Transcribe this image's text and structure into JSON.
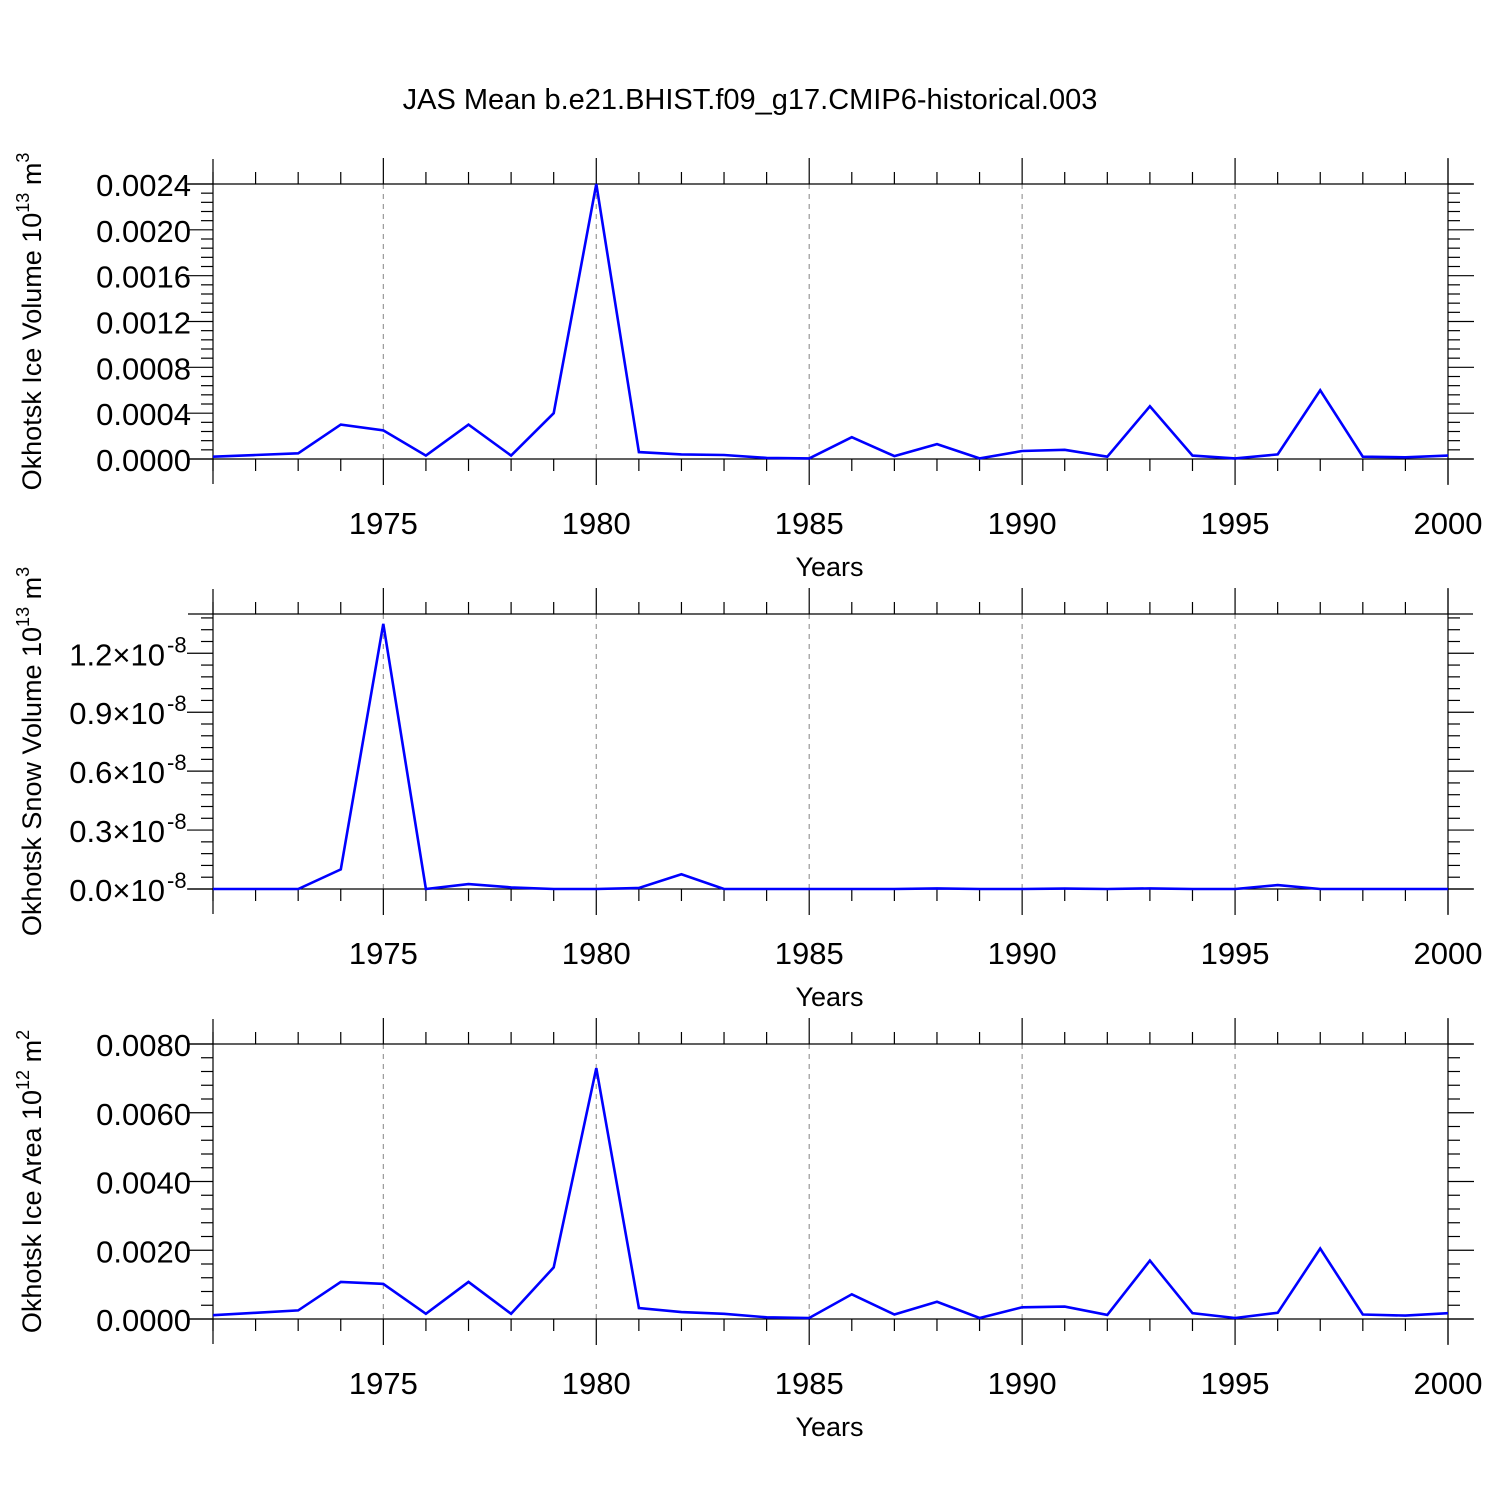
{
  "figure": {
    "title": "JAS Mean b.e21.BHIST.f09_g17.CMIP6-historical.003",
    "line_color": "#0000ff"
  },
  "chart_data": [
    {
      "type": "line",
      "title": "",
      "ylabel": "Okhotsk Ice Volume 10",
      "ylabel_exp": "13",
      "ylabel_unit": " m",
      "ylabel_unit_exp": "3",
      "xlabel": "Years",
      "xlim": [
        1971,
        2000
      ],
      "ylim": [
        0,
        0.0024
      ],
      "xticks": [
        1975,
        1980,
        1985,
        1990,
        1995,
        2000
      ],
      "xtick_labels": [
        "1975",
        "1980",
        "1985",
        "1990",
        "1995",
        "2000"
      ],
      "yticks": [
        0,
        0.0004,
        0.0008,
        0.0012,
        0.0016,
        0.002,
        0.0024
      ],
      "ytick_labels": [
        "0.0000",
        "0.0004",
        "0.0008",
        "0.0012",
        "0.0016",
        "0.0020",
        "0.0024"
      ],
      "grid": "vertical dashed at major x ticks",
      "x": [
        1971,
        1972,
        1973,
        1974,
        1975,
        1976,
        1977,
        1978,
        1979,
        1980,
        1981,
        1982,
        1983,
        1984,
        1985,
        1986,
        1987,
        1988,
        1989,
        1990,
        1991,
        1992,
        1993,
        1994,
        1995,
        1996,
        1997,
        1998,
        1999,
        2000
      ],
      "series": [
        {
          "values": [
            2e-05,
            3.5e-05,
            5e-05,
            0.0003,
            0.00025,
            3e-05,
            0.0003,
            3e-05,
            0.0004,
            0.0024,
            6e-05,
            4e-05,
            3.5e-05,
            1e-05,
            5e-06,
            0.00019,
            2.5e-05,
            0.00013,
            5e-06,
            7e-05,
            8e-05,
            2e-05,
            0.00046,
            3e-05,
            5e-06,
            4e-05,
            0.0006,
            2e-05,
            1.5e-05,
            3e-05
          ]
        }
      ]
    },
    {
      "type": "line",
      "title": "",
      "ylabel": "Okhotsk Snow Volume 10",
      "ylabel_exp": "13",
      "ylabel_unit": " m",
      "ylabel_unit_exp": "3",
      "xlabel": "Years",
      "xlim": [
        1971,
        2000
      ],
      "ylim": [
        0,
        1.4e-08
      ],
      "xticks": [
        1975,
        1980,
        1985,
        1990,
        1995,
        2000
      ],
      "xtick_labels": [
        "1975",
        "1980",
        "1985",
        "1990",
        "1995",
        "2000"
      ],
      "yticks": [
        0,
        3e-09,
        6e-09,
        9e-09,
        1.2e-08
      ],
      "ytick_mantissas": [
        "0.0",
        "0.3",
        "0.6",
        "0.9",
        "1.2"
      ],
      "ytick_times": "×10",
      "ytick_exponent": "-8",
      "grid": "vertical dashed at major x ticks",
      "x": [
        1971,
        1972,
        1973,
        1974,
        1975,
        1976,
        1977,
        1978,
        1979,
        1980,
        1981,
        1982,
        1983,
        1984,
        1985,
        1986,
        1987,
        1988,
        1989,
        1990,
        1991,
        1992,
        1993,
        1994,
        1995,
        1996,
        1997,
        1998,
        1999,
        2000
      ],
      "series": [
        {
          "values": [
            0,
            0,
            0,
            1e-09,
            1.35e-08,
            0,
            2.5e-10,
            8e-11,
            0,
            0,
            5e-11,
            7.5e-10,
            0,
            0,
            0,
            0,
            0,
            3e-11,
            0,
            0,
            2e-11,
            0,
            3e-11,
            0,
            0,
            2e-10,
            0,
            0,
            0,
            0
          ]
        }
      ]
    },
    {
      "type": "line",
      "title": "",
      "ylabel": "Okhotsk Ice Area 10",
      "ylabel_exp": "12",
      "ylabel_unit": " m",
      "ylabel_unit_exp": "2",
      "xlabel": "Years",
      "xlim": [
        1971,
        2000
      ],
      "ylim": [
        0,
        0.008
      ],
      "xticks": [
        1975,
        1980,
        1985,
        1990,
        1995,
        2000
      ],
      "xtick_labels": [
        "1975",
        "1980",
        "1985",
        "1990",
        "1995",
        "2000"
      ],
      "yticks": [
        0,
        0.002,
        0.004,
        0.006,
        0.008
      ],
      "ytick_labels": [
        "0.0000",
        "0.0020",
        "0.0040",
        "0.0060",
        "0.0080"
      ],
      "grid": "vertical dashed at major x ticks",
      "x": [
        1971,
        1972,
        1973,
        1974,
        1975,
        1976,
        1977,
        1978,
        1979,
        1980,
        1981,
        1982,
        1983,
        1984,
        1985,
        1986,
        1987,
        1988,
        1989,
        1990,
        1991,
        1992,
        1993,
        1994,
        1995,
        1996,
        1997,
        1998,
        1999,
        2000
      ],
      "series": [
        {
          "values": [
            0.00011,
            0.00018,
            0.00025,
            0.00108,
            0.00102,
            0.00015,
            0.00108,
            0.00015,
            0.0015,
            0.0073,
            0.00032,
            0.0002,
            0.00015,
            5e-05,
            3e-05,
            0.00072,
            0.00013,
            0.0005,
            3e-05,
            0.00034,
            0.00036,
            0.00012,
            0.0017,
            0.00017,
            3e-05,
            0.00018,
            0.00205,
            0.00013,
            0.0001,
            0.00017
          ]
        }
      ]
    }
  ]
}
